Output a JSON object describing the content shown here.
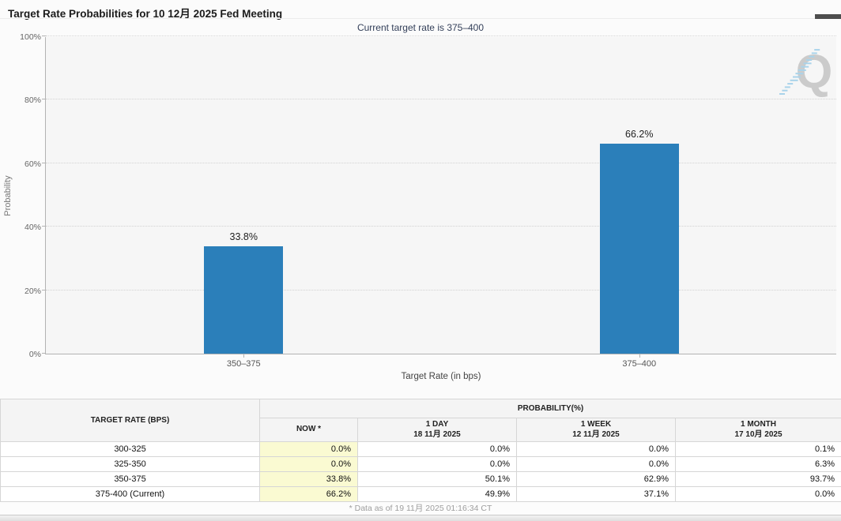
{
  "header": {
    "title": "Target Rate Probabilities for 10 12月 2025 Fed Meeting",
    "subtitle": "Current target rate is 375–400"
  },
  "chart_data": {
    "type": "bar",
    "categories": [
      "350–375",
      "375–400"
    ],
    "values": [
      33.8,
      66.2
    ],
    "bar_labels": [
      "33.8%",
      "66.2%"
    ],
    "title": "Target Rate Probabilities for 10 12月 2025 Fed Meeting",
    "xlabel": "Target Rate (in bps)",
    "ylabel": "Probability",
    "ylim": [
      0,
      100
    ],
    "yticks": [
      "0%",
      "20%",
      "40%",
      "60%",
      "80%",
      "100%"
    ],
    "grid": "horizontal-dotted",
    "legend": "none",
    "bar_color": "#2b7fba",
    "watermark_letter": "Q"
  },
  "table": {
    "group_header": "PROBABILITY(%)",
    "columns": [
      {
        "label": "TARGET RATE (BPS)",
        "sub": ""
      },
      {
        "label": "NOW *",
        "sub": ""
      },
      {
        "label": "1 DAY",
        "sub": "18 11月 2025"
      },
      {
        "label": "1 WEEK",
        "sub": "12 11月 2025"
      },
      {
        "label": "1 MONTH",
        "sub": "17 10月 2025"
      }
    ],
    "rows": [
      {
        "rate": "300-325",
        "now": "0.0%",
        "day": "0.0%",
        "week": "0.0%",
        "month": "0.1%"
      },
      {
        "rate": "325-350",
        "now": "0.0%",
        "day": "0.0%",
        "week": "0.0%",
        "month": "6.3%"
      },
      {
        "rate": "350-375",
        "now": "33.8%",
        "day": "50.1%",
        "week": "62.9%",
        "month": "93.7%"
      },
      {
        "rate": "375-400 (Current)",
        "now": "66.2%",
        "day": "49.9%",
        "week": "37.1%",
        "month": "0.0%"
      }
    ],
    "footnote": "* Data as of 19 11月 2025 01:16:34 CT"
  },
  "colors": {
    "bar": "#2b7fba",
    "now_column_bg": "#fafad2",
    "watermark_gray": "#c9c9c9",
    "watermark_blue": "#a5d2ea"
  }
}
